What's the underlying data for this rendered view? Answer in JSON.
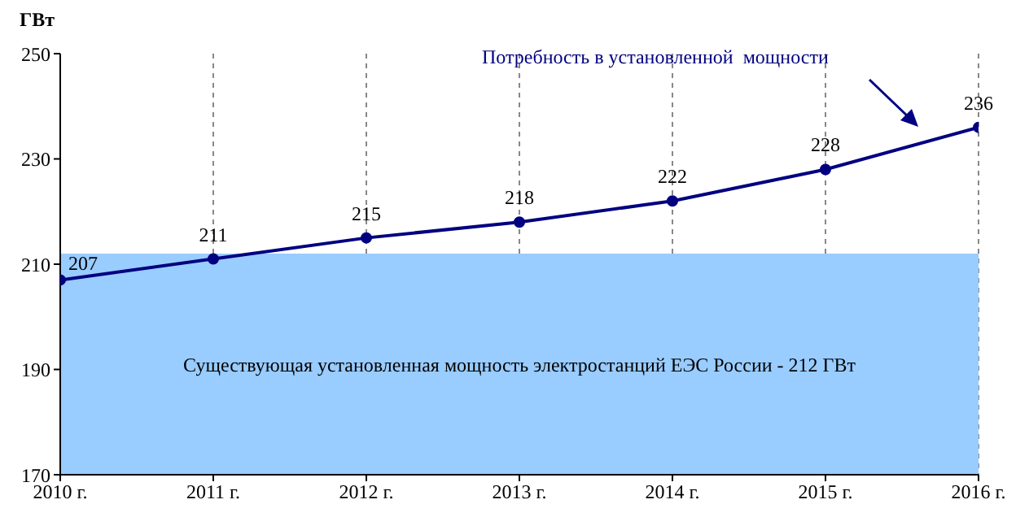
{
  "chart_data": {
    "type": "line",
    "ylabel": "ГВт",
    "categories": [
      "2010 г.",
      "2011 г.",
      "2012 г.",
      "2013 г.",
      "2014 г.",
      "2015 г.",
      "2016 г."
    ],
    "series": [
      {
        "name": "Потребность в установленной  мощности",
        "color": "#000080",
        "values": [
          207,
          211,
          215,
          218,
          222,
          228,
          236
        ]
      }
    ],
    "ylim": [
      170,
      250
    ],
    "yticks": [
      170,
      190,
      210,
      230,
      250
    ],
    "bands": [
      {
        "axis": "y",
        "from": 170,
        "to": 212,
        "label": "Существующая установленная мощность электростанций ЕЭС России - 212 ГВт",
        "color": "#99ccff"
      }
    ],
    "data_labels": true,
    "grid": "x",
    "legend": false,
    "marker": "circle",
    "line_style": "solid"
  }
}
